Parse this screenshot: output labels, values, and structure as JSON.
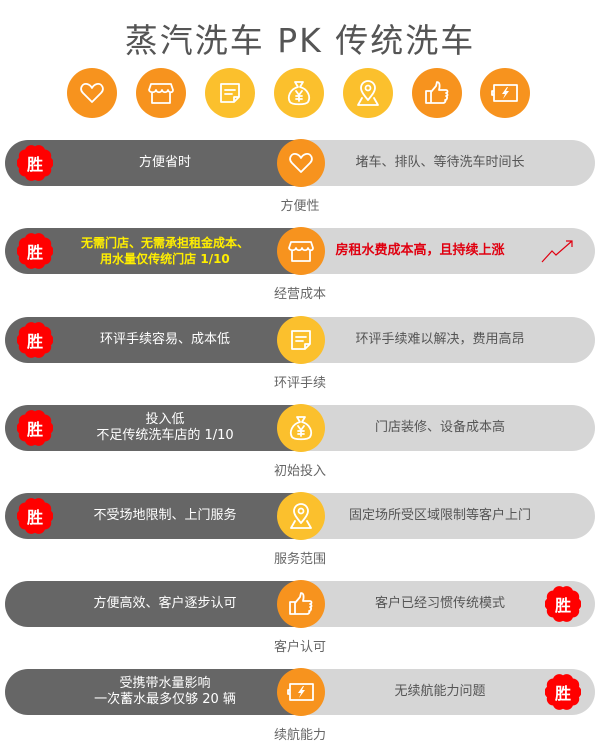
{
  "title": "蒸汽洗车 PK 传统洗车",
  "win_label": "胜",
  "colors": {
    "orange": "#f7931e",
    "yellow": "#fbc02d",
    "dark": "#666666",
    "light": "#d6d6d6",
    "win": "#ff0000"
  },
  "rows": [
    {
      "icon": "heart-icon",
      "color": "orange",
      "left": "方便省时",
      "right": "堵车、排队、等待洗车时间长",
      "caption": "方便性",
      "winner": "left"
    },
    {
      "icon": "shop-icon",
      "color": "orange",
      "left": "无需门店、无需承担租金成本、\n用水量仅传统门店 1/10",
      "right": "房租水费成本高，且持续上涨",
      "caption": "经营成本",
      "winner": "left",
      "highlight": true,
      "right_icon": "trend-up-arrow-icon"
    },
    {
      "icon": "note-icon",
      "color": "yellow",
      "left": "环评手续容易、成本低",
      "right": "环评手续难以解决，费用高昂",
      "caption": "环评手续",
      "winner": "left"
    },
    {
      "icon": "money-bag-icon",
      "color": "yellow",
      "left": "投入低\n不足传统洗车店的 1/10",
      "right": "门店装修、设备成本高",
      "caption": "初始投入",
      "winner": "left"
    },
    {
      "icon": "location-pin-icon",
      "color": "yellow",
      "left": "不受场地限制、上门服务",
      "right": "固定场所受区域限制等客户上门",
      "caption": "服务范围",
      "winner": "left"
    },
    {
      "icon": "thumbs-up-icon",
      "color": "orange",
      "left": "方便高效、客户逐步认可",
      "right": "客户已经习惯传统模式",
      "caption": "客户认可",
      "winner": "right"
    },
    {
      "icon": "battery-icon",
      "color": "orange",
      "left": "受携带水量影响\n一次蓄水最多仅够 20 辆",
      "right": "无续航能力问题",
      "caption": "续航能力",
      "winner": "right"
    }
  ]
}
